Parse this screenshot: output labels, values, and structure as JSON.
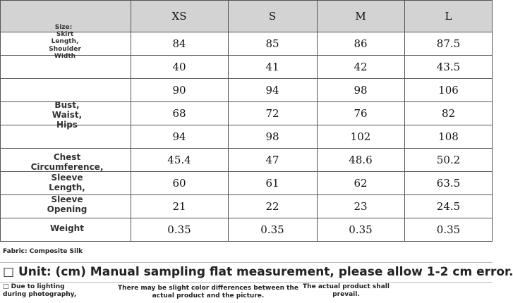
{
  "table": {
    "size_label": "Size:",
    "header": [
      "XS",
      "S",
      "M",
      "L"
    ],
    "labels": [
      "Skirt Length, Shoulder Width",
      "Bust, Waist, Hips",
      "Chest Circumference,",
      "Sleeve Length,",
      "Sleeve Opening",
      "Weight"
    ],
    "rows": [
      [
        84,
        85,
        86,
        87.5
      ],
      [
        40,
        41,
        42,
        43.5
      ],
      [
        90,
        94,
        98,
        106
      ],
      [
        68,
        72,
        76,
        82
      ],
      [
        94,
        98,
        102,
        108
      ],
      [
        45.4,
        47,
        48.6,
        50.2
      ],
      [
        60,
        61,
        62,
        63.5
      ],
      [
        21,
        22,
        23,
        24.5
      ],
      [
        0.35,
        0.35,
        0.35,
        0.35
      ]
    ]
  },
  "fabric": "Fabric: Composite Silk",
  "unit": "□ Unit: (cm) Manual sampling flat measurement, please allow 1-2 cm error.",
  "footer": [
    "□ Due to lighting during photography,",
    "There may be slight color differences between the actual product and the picture.",
    "The actual product shall prevail."
  ]
}
